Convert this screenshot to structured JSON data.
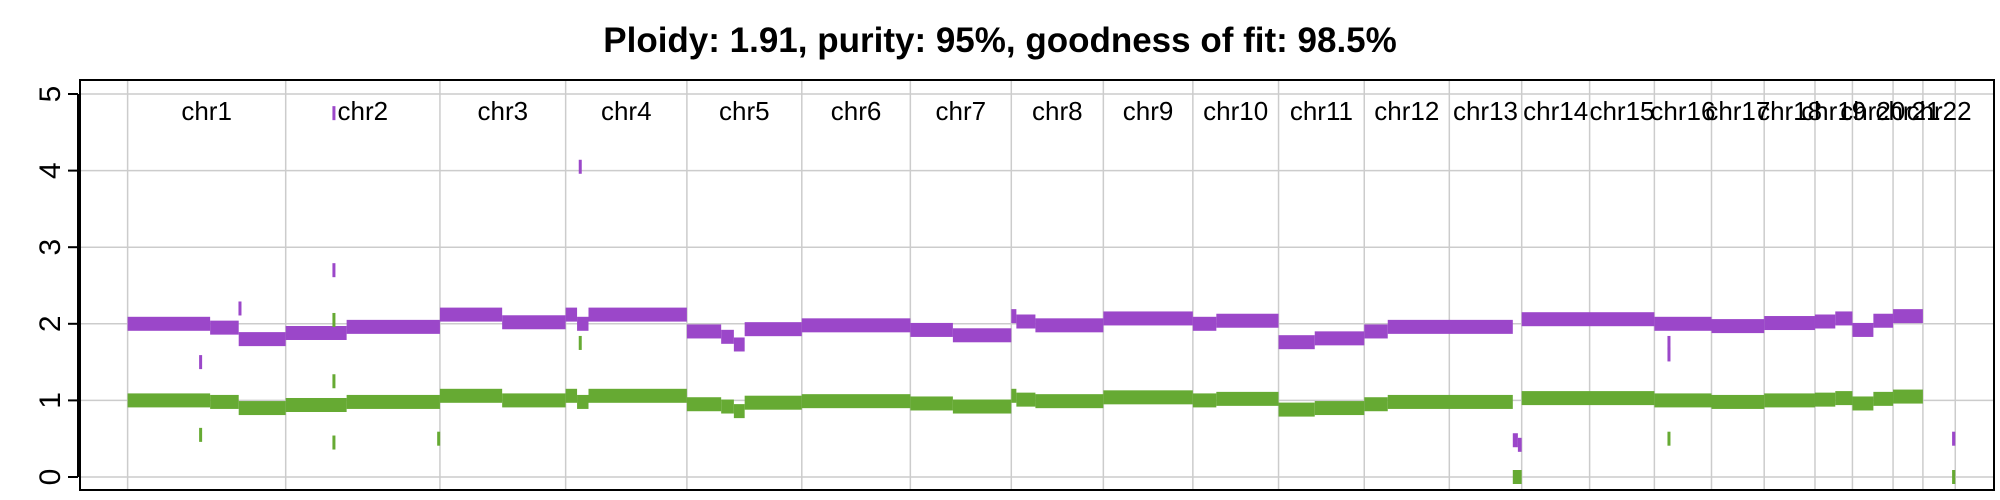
{
  "chart_data": {
    "type": "line",
    "title": "Ploidy: 1.91, purity: 95%, goodness of fit: 98.5%",
    "xlabel": "",
    "ylabel": "",
    "ylim": [
      0,
      5
    ],
    "yticks": [
      "0",
      "1",
      "2",
      "3",
      "4",
      "5"
    ],
    "grid": true,
    "colors": {
      "total": "#9b47c9",
      "minor": "#66aa33",
      "grid": "#cccccc"
    },
    "chromosomes": [
      "chr1",
      "chr2",
      "chr3",
      "chr4",
      "chr5",
      "chr6",
      "chr7",
      "chr8",
      "chr9",
      "chr10",
      "chr11",
      "chr12",
      "chr13",
      "chr14",
      "chr15",
      "chr16",
      "chr17",
      "chr18",
      "chr19",
      "chr20",
      "chr21",
      "chr22"
    ],
    "chromosome_boundaries_mb": [
      0,
      249,
      492,
      690,
      881,
      1062,
      1233,
      1392,
      1537,
      1678,
      1813,
      1948,
      2082,
      2196,
      2303,
      2405,
      2495,
      2578,
      2658,
      2717,
      2781,
      2828,
      2879
    ],
    "series": [
      {
        "segments": [
          {
            "start": 0,
            "end": 130,
            "value": 2.0
          },
          {
            "start": 130,
            "end": 175,
            "value": 1.95
          },
          {
            "start": 175,
            "end": 249,
            "value": 1.8
          },
          {
            "start": 249,
            "end": 345,
            "value": 1.88
          },
          {
            "start": 345,
            "end": 492,
            "value": 1.96
          },
          {
            "start": 492,
            "end": 590,
            "value": 2.12
          },
          {
            "start": 590,
            "end": 690,
            "value": 2.02
          },
          {
            "start": 690,
            "end": 708,
            "value": 2.12
          },
          {
            "start": 708,
            "end": 726,
            "value": 2.0
          },
          {
            "start": 726,
            "end": 881,
            "value": 2.12
          },
          {
            "start": 881,
            "end": 935,
            "value": 1.9
          },
          {
            "start": 935,
            "end": 955,
            "value": 1.83
          },
          {
            "start": 955,
            "end": 972,
            "value": 1.73
          },
          {
            "start": 972,
            "end": 1062,
            "value": 1.93
          },
          {
            "start": 1062,
            "end": 1233,
            "value": 1.98
          },
          {
            "start": 1233,
            "end": 1300,
            "value": 1.92
          },
          {
            "start": 1300,
            "end": 1392,
            "value": 1.85
          },
          {
            "start": 1392,
            "end": 1400,
            "value": 2.1
          },
          {
            "start": 1400,
            "end": 1430,
            "value": 2.03
          },
          {
            "start": 1430,
            "end": 1537,
            "value": 1.98
          },
          {
            "start": 1537,
            "end": 1678,
            "value": 2.07
          },
          {
            "start": 1678,
            "end": 1715,
            "value": 2.0
          },
          {
            "start": 1715,
            "end": 1813,
            "value": 2.04
          },
          {
            "start": 1813,
            "end": 1870,
            "value": 1.76
          },
          {
            "start": 1870,
            "end": 1948,
            "value": 1.81
          },
          {
            "start": 1948,
            "end": 1985,
            "value": 1.9
          },
          {
            "start": 1985,
            "end": 2182,
            "value": 1.96
          },
          {
            "start": 2182,
            "end": 2190,
            "value": 0.48
          },
          {
            "start": 2190,
            "end": 2196,
            "value": 0.42
          },
          {
            "start": 2196,
            "end": 2405,
            "value": 2.06
          },
          {
            "start": 2405,
            "end": 2495,
            "value": 2.0
          },
          {
            "start": 2495,
            "end": 2578,
            "value": 1.97
          },
          {
            "start": 2578,
            "end": 2658,
            "value": 2.01
          },
          {
            "start": 2658,
            "end": 2690,
            "value": 2.03
          },
          {
            "start": 2690,
            "end": 2717,
            "value": 2.07
          },
          {
            "start": 2717,
            "end": 2750,
            "value": 1.92
          },
          {
            "start": 2750,
            "end": 2781,
            "value": 2.04
          },
          {
            "start": 2781,
            "end": 2828,
            "value": 2.1
          },
          {
            "start": 2874,
            "end": 2879,
            "value": 0.5
          }
        ],
        "outliers": [
          {
            "position": 115,
            "value": 1.5
          },
          {
            "position": 177,
            "value": 2.2
          },
          {
            "position": 325,
            "value": 4.75
          },
          {
            "position": 325,
            "value": 2.7
          },
          {
            "position": 713,
            "value": 4.05
          },
          {
            "position": 2428,
            "value": 1.75
          },
          {
            "position": 2428,
            "value": 1.6
          }
        ]
      },
      {
        "segments": [
          {
            "start": 0,
            "end": 130,
            "value": 1.0
          },
          {
            "start": 130,
            "end": 175,
            "value": 0.98
          },
          {
            "start": 175,
            "end": 249,
            "value": 0.9
          },
          {
            "start": 249,
            "end": 345,
            "value": 0.94
          },
          {
            "start": 345,
            "end": 492,
            "value": 0.98
          },
          {
            "start": 492,
            "end": 590,
            "value": 1.06
          },
          {
            "start": 590,
            "end": 690,
            "value": 1.0
          },
          {
            "start": 690,
            "end": 708,
            "value": 1.06
          },
          {
            "start": 708,
            "end": 726,
            "value": 0.98
          },
          {
            "start": 726,
            "end": 881,
            "value": 1.06
          },
          {
            "start": 881,
            "end": 935,
            "value": 0.95
          },
          {
            "start": 935,
            "end": 955,
            "value": 0.92
          },
          {
            "start": 955,
            "end": 972,
            "value": 0.86
          },
          {
            "start": 972,
            "end": 1062,
            "value": 0.97
          },
          {
            "start": 1062,
            "end": 1233,
            "value": 0.99
          },
          {
            "start": 1233,
            "end": 1300,
            "value": 0.96
          },
          {
            "start": 1300,
            "end": 1392,
            "value": 0.92
          },
          {
            "start": 1392,
            "end": 1400,
            "value": 1.06
          },
          {
            "start": 1400,
            "end": 1430,
            "value": 1.01
          },
          {
            "start": 1430,
            "end": 1537,
            "value": 0.99
          },
          {
            "start": 1537,
            "end": 1678,
            "value": 1.04
          },
          {
            "start": 1678,
            "end": 1715,
            "value": 1.0
          },
          {
            "start": 1715,
            "end": 1813,
            "value": 1.02
          },
          {
            "start": 1813,
            "end": 1870,
            "value": 0.88
          },
          {
            "start": 1870,
            "end": 1948,
            "value": 0.9
          },
          {
            "start": 1948,
            "end": 1985,
            "value": 0.95
          },
          {
            "start": 1985,
            "end": 2182,
            "value": 0.98
          },
          {
            "start": 2182,
            "end": 2196,
            "value": 0.0
          },
          {
            "start": 2196,
            "end": 2405,
            "value": 1.03
          },
          {
            "start": 2405,
            "end": 2495,
            "value": 1.0
          },
          {
            "start": 2495,
            "end": 2578,
            "value": 0.98
          },
          {
            "start": 2578,
            "end": 2658,
            "value": 1.0
          },
          {
            "start": 2658,
            "end": 2690,
            "value": 1.01
          },
          {
            "start": 2690,
            "end": 2717,
            "value": 1.03
          },
          {
            "start": 2717,
            "end": 2750,
            "value": 0.96
          },
          {
            "start": 2750,
            "end": 2781,
            "value": 1.02
          },
          {
            "start": 2781,
            "end": 2828,
            "value": 1.05
          },
          {
            "start": 2874,
            "end": 2879,
            "value": 0.0
          }
        ],
        "outliers": [
          {
            "position": 115,
            "value": 0.55
          },
          {
            "position": 325,
            "value": 0.45
          },
          {
            "position": 325,
            "value": 1.25
          },
          {
            "position": 325,
            "value": 2.05
          },
          {
            "position": 490,
            "value": 0.5
          },
          {
            "position": 713,
            "value": 1.75
          },
          {
            "position": 2428,
            "value": 0.5
          }
        ]
      }
    ]
  }
}
